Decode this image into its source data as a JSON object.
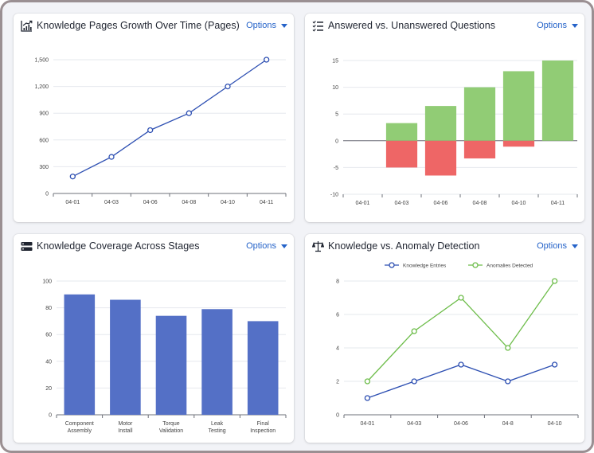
{
  "cards": [
    {
      "title": "Knowledge Pages Growth Over Time (Pages)",
      "options_label": "Options",
      "icon": "trend-chart-icon"
    },
    {
      "title": "Answered vs. Unanswered Questions",
      "options_label": "Options",
      "icon": "checklist-icon"
    },
    {
      "title": "Knowledge Coverage Across Stages",
      "options_label": "Options",
      "icon": "server-stack-icon"
    },
    {
      "title": "Knowledge vs. Anomaly Detection",
      "options_label": "Options",
      "icon": "balance-scale-icon"
    }
  ],
  "colors": {
    "accent": "#2563c9",
    "line_blue": "#2d4fb2",
    "line_green": "#6ebd4b",
    "bar_blue": "#5470c6",
    "bar_green": "#91cc75",
    "bar_red": "#ee6666"
  },
  "chart_data": [
    {
      "type": "line",
      "title": "Knowledge Pages Growth Over Time (Pages)",
      "categories": [
        "04-01",
        "04-03",
        "04-06",
        "04-08",
        "04-10",
        "04-11"
      ],
      "series": [
        {
          "values": [
            190,
            410,
            710,
            900,
            1200,
            1500
          ]
        }
      ],
      "ylim": [
        0,
        1500
      ],
      "yticks": [
        "0",
        "300",
        "600",
        "900",
        "1,200",
        "1,500"
      ],
      "grid": true
    },
    {
      "type": "bar",
      "title": "Answered vs. Unanswered Questions",
      "categories": [
        "04-01",
        "04-03",
        "04-06",
        "04-08",
        "04-10",
        "04-11"
      ],
      "series": [
        {
          "values": [
            0,
            3.3,
            6.5,
            10,
            13,
            15
          ]
        },
        {
          "values": [
            0,
            -5,
            -6.5,
            -3.3,
            -1.1,
            0
          ]
        }
      ],
      "stacked": true,
      "ylim": [
        -10,
        15
      ],
      "yticks": [
        "-10",
        "-5",
        "0",
        "5",
        "10",
        "15"
      ],
      "grid": true
    },
    {
      "type": "bar",
      "title": "Knowledge Coverage Across Stages",
      "categories": [
        [
          "Component",
          "Assembly"
        ],
        [
          "Motor",
          "Install"
        ],
        [
          "Torque",
          "Validation"
        ],
        [
          "Leak",
          "Testing"
        ],
        [
          "Final",
          "Inspection"
        ]
      ],
      "series": [
        {
          "values": [
            90,
            86,
            74,
            79,
            70
          ]
        }
      ],
      "ylim": [
        0,
        100
      ],
      "yticks": [
        "0",
        "20",
        "40",
        "60",
        "80",
        "100"
      ],
      "grid": true
    },
    {
      "type": "line",
      "title": "Knowledge vs. Anomaly Detection",
      "categories": [
        "04-01",
        "04-03",
        "04-06",
        "04-8",
        "04-10"
      ],
      "series": [
        {
          "name": "Knowledge Entries",
          "values": [
            1,
            2,
            3,
            2,
            3
          ]
        },
        {
          "name": "Anomalies Detected",
          "values": [
            2,
            5,
            7,
            4,
            8
          ]
        }
      ],
      "ylim": [
        0,
        8
      ],
      "yticks": [
        "0",
        "2",
        "4",
        "6",
        "8"
      ],
      "legend": "top",
      "grid": true
    }
  ]
}
